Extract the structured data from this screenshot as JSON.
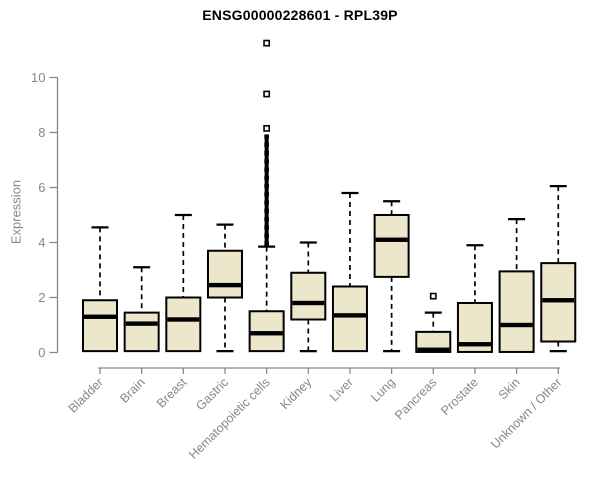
{
  "chart_data": {
    "type": "boxplot",
    "title": "ENSG00000228601 - RPL39P",
    "ylabel": "Expression",
    "xlabel": "",
    "ylim": [
      0,
      10
    ],
    "yticks": [
      0,
      2,
      4,
      6,
      8,
      10
    ],
    "grid": false,
    "legend": "none",
    "x_label_rotation_deg": 45,
    "categories": [
      "Bladder",
      "Brain",
      "Breast",
      "Gastric",
      "Hematopoietic cells",
      "Kidney",
      "Liver",
      "Lung",
      "Pancreas",
      "Prostate",
      "Skin",
      "Unknown / Other"
    ],
    "boxes": [
      {
        "category": "Bladder",
        "whisker_low": 0.05,
        "q1": 0.05,
        "median": 1.3,
        "q3": 1.9,
        "whisker_high": 4.55,
        "outliers": []
      },
      {
        "category": "Brain",
        "whisker_low": 0.05,
        "q1": 0.05,
        "median": 1.05,
        "q3": 1.45,
        "whisker_high": 3.1,
        "outliers": []
      },
      {
        "category": "Breast",
        "whisker_low": 0.05,
        "q1": 0.05,
        "median": 1.2,
        "q3": 2.0,
        "whisker_high": 5.0,
        "outliers": []
      },
      {
        "category": "Gastric",
        "whisker_low": 0.05,
        "q1": 2.0,
        "median": 2.45,
        "q3": 3.7,
        "whisker_high": 4.65,
        "outliers": []
      },
      {
        "category": "Hematopoietic cells",
        "whisker_low": 0.05,
        "q1": 0.05,
        "median": 0.7,
        "q3": 1.5,
        "whisker_high": 3.85,
        "outliers": [
          8.15,
          9.4,
          11.25
        ],
        "outlier_band": {
          "from": 3.95,
          "to": 7.9
        }
      },
      {
        "category": "Kidney",
        "whisker_low": 0.05,
        "q1": 1.2,
        "median": 1.8,
        "q3": 2.9,
        "whisker_high": 4.0,
        "outliers": []
      },
      {
        "category": "Liver",
        "whisker_low": 0.05,
        "q1": 0.05,
        "median": 1.35,
        "q3": 2.4,
        "whisker_high": 5.8,
        "outliers": []
      },
      {
        "category": "Lung",
        "whisker_low": 0.05,
        "q1": 2.75,
        "median": 4.1,
        "q3": 5.0,
        "whisker_high": 5.5,
        "outliers": []
      },
      {
        "category": "Pancreas",
        "whisker_low": 0.02,
        "q1": 0.02,
        "median": 0.1,
        "q3": 0.75,
        "whisker_high": 1.45,
        "outliers": [
          2.05
        ]
      },
      {
        "category": "Prostate",
        "whisker_low": 0.02,
        "q1": 0.02,
        "median": 0.3,
        "q3": 1.8,
        "whisker_high": 3.9,
        "outliers": []
      },
      {
        "category": "Skin",
        "whisker_low": 0.02,
        "q1": 0.02,
        "median": 1.0,
        "q3": 2.95,
        "whisker_high": 4.85,
        "outliers": []
      },
      {
        "category": "Unknown / Other",
        "whisker_low": 0.05,
        "q1": 0.4,
        "median": 1.9,
        "q3": 3.25,
        "whisker_high": 6.05,
        "outliers": []
      }
    ],
    "colors": {
      "box_fill": "#ECE7CA",
      "box_stroke": "#000000",
      "median": "#000000",
      "whisker": "#000000",
      "axis": "#888888",
      "title_text": "#000000",
      "background": "#ffffff"
    }
  }
}
